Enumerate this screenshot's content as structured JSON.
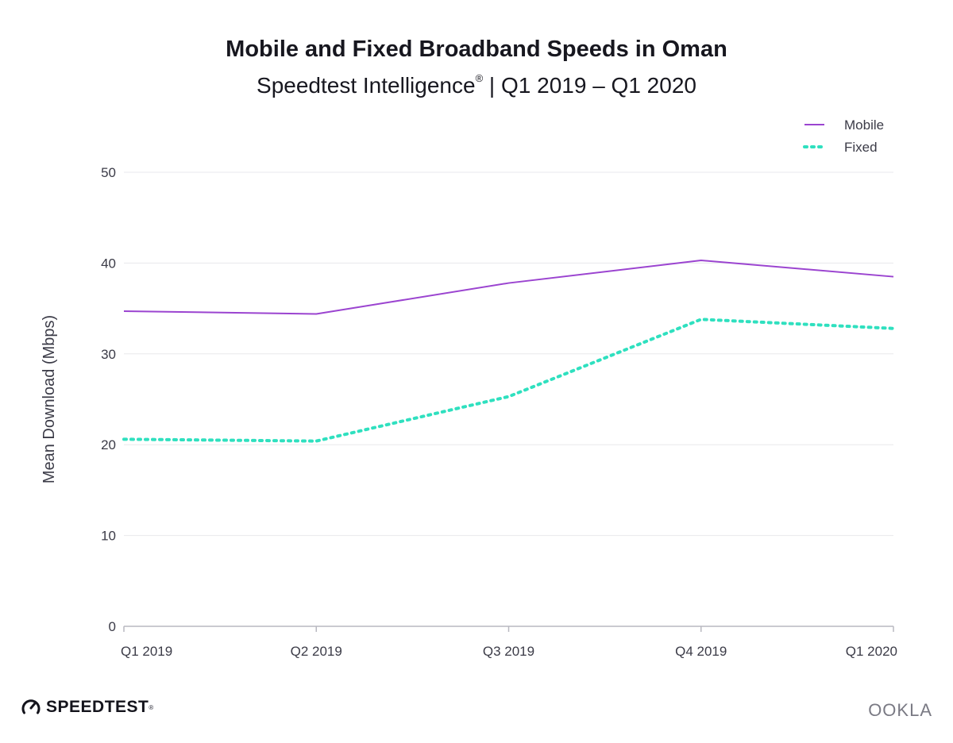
{
  "header": {
    "title": "Mobile and Fixed Broadband Speeds in Oman",
    "subtitle_main": "Speedtest Intelligence",
    "subtitle_mark": "®",
    "subtitle_range": " | Q1 2019 – Q1 2020"
  },
  "colors": {
    "mobile": "#9b44d0",
    "fixed": "#2fe0bf",
    "grid": "#e8e8ec",
    "axis": "#b8b8c0"
  },
  "chart_data": {
    "type": "line",
    "title": "Mobile and Fixed Broadband Speeds in Oman",
    "subtitle": "Speedtest Intelligence® | Q1 2019 – Q1 2020",
    "xlabel": "",
    "ylabel": "Mean Download (Mbps)",
    "ylim": [
      0,
      50
    ],
    "yticks": [
      "0",
      "10",
      "20",
      "30",
      "40",
      "50"
    ],
    "categories": [
      "Q1 2019",
      "Q2 2019",
      "Q3 2019",
      "Q4 2019",
      "Q1 2020"
    ],
    "series": [
      {
        "name": "Mobile",
        "style": "solid",
        "values": [
          34.7,
          34.4,
          37.8,
          40.3,
          38.5
        ]
      },
      {
        "name": "Fixed",
        "style": "dotted",
        "values": [
          20.6,
          20.4,
          25.3,
          33.8,
          32.8
        ]
      }
    ],
    "legend": "top-right",
    "grid": true
  },
  "footer": {
    "brand_left": "SPEEDTEST",
    "brand_left_mark": "®",
    "brand_right": "OOKLA"
  }
}
